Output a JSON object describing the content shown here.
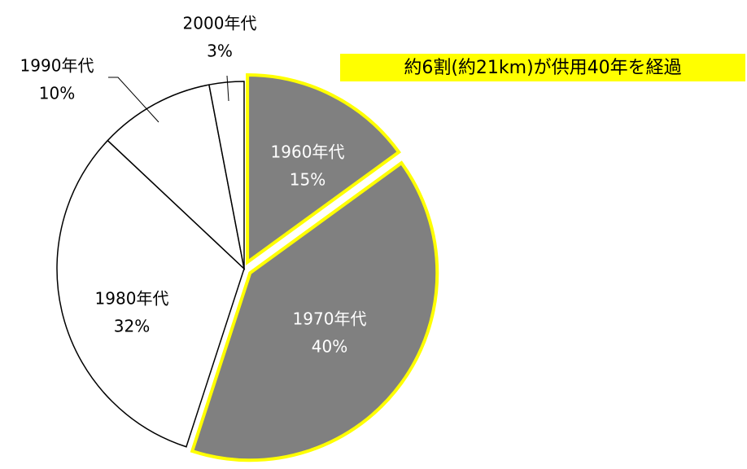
{
  "chart_data": {
    "type": "pie",
    "categories": [
      "1960年代",
      "1970年代",
      "1980年代",
      "1990年代",
      "2000年代"
    ],
    "values": [
      15,
      40,
      32,
      10,
      3
    ],
    "value_labels": [
      "15%",
      "40%",
      "32%",
      "10%",
      "3%"
    ],
    "colors": [
      "#808080",
      "#808080",
      "#ffffff",
      "#ffffff",
      "#ffffff"
    ],
    "edge_colors": [
      "#ffff00",
      "#ffff00",
      "#000000",
      "#000000",
      "#000000"
    ],
    "label_colors": [
      "#ffffff",
      "#ffffff",
      "#000000",
      "#000000",
      "#000000"
    ],
    "explode": [
      true,
      true,
      false,
      false,
      false
    ],
    "start_angle": 0,
    "direction": "clockwise",
    "annotation": {
      "text": "約6割(約21km)が供用40年を経過",
      "background": "#ffff00"
    }
  }
}
